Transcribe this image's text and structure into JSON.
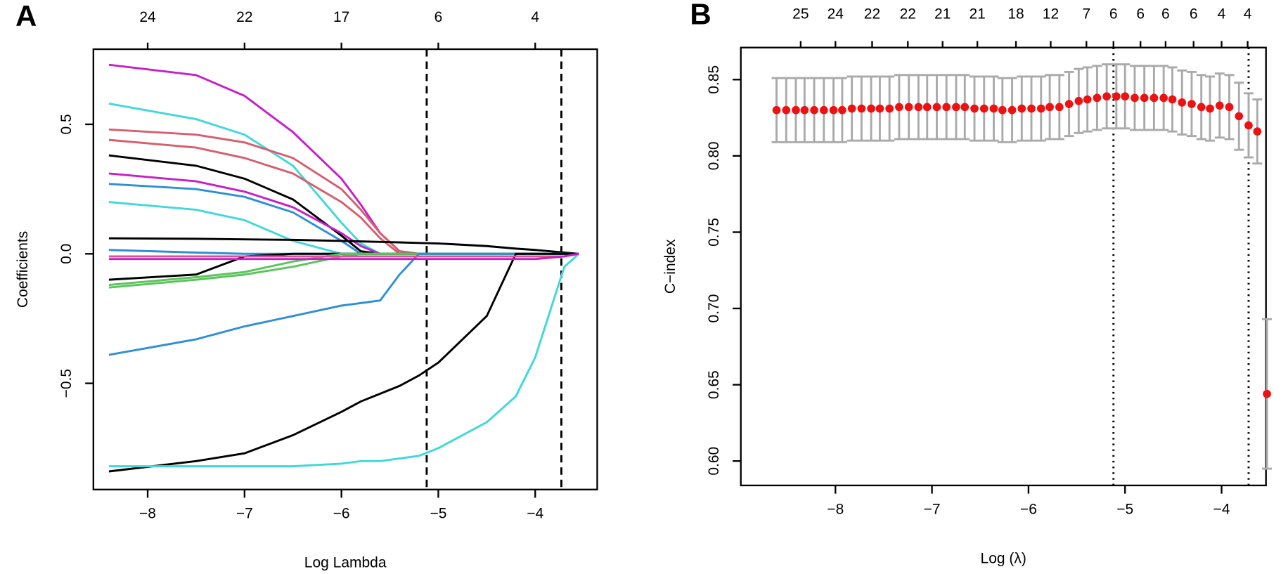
{
  "chart_data": [
    {
      "type": "line",
      "panel_label": "A",
      "x_label": "Log Lambda",
      "y_label": "Coefficients",
      "xlim": [
        -8.56,
        -3.36
      ],
      "ylim": [
        -0.91,
        0.79
      ],
      "xticks": [
        {
          "value": -8,
          "label": "−8"
        },
        {
          "value": -7,
          "label": "−7"
        },
        {
          "value": -6,
          "label": "−6"
        },
        {
          "value": -5,
          "label": "−5"
        },
        {
          "value": -4,
          "label": "−4"
        }
      ],
      "yticks": [
        {
          "value": -0.5,
          "label": "−0.5"
        },
        {
          "value": 0,
          "label": "0.0"
        },
        {
          "value": 0.5,
          "label": "0.5"
        }
      ],
      "top_ticks": [
        {
          "value": -8,
          "label": "24"
        },
        {
          "value": -7,
          "label": "22"
        },
        {
          "value": -6,
          "label": "17"
        },
        {
          "value": -5,
          "label": "6"
        },
        {
          "value": -4,
          "label": "4"
        }
      ],
      "vlines": [
        -5.12,
        -3.73
      ],
      "vline_style": "dashed",
      "x": [
        -8.4,
        -7.5,
        -7,
        -6.5,
        -6,
        -5.8,
        -5.6,
        -5.4,
        -5.2,
        -5,
        -4.5,
        -4.2,
        -4,
        -3.7,
        -3.55
      ],
      "series": [
        {
          "color": "#c71fc7",
          "values": [
            0.73,
            0.69,
            0.61,
            0.47,
            0.29,
            0.19,
            0.08,
            0.01,
            0,
            0,
            0,
            0,
            0,
            0,
            0
          ]
        },
        {
          "color": "#40d8d8",
          "values": [
            0.58,
            0.52,
            0.46,
            0.34,
            0.12,
            0.04,
            0,
            0,
            0,
            0,
            0,
            0,
            0,
            0,
            0
          ]
        },
        {
          "color": "#d55f6f",
          "values": [
            0.48,
            0.46,
            0.43,
            0.37,
            0.25,
            0.17,
            0.08,
            0.01,
            0,
            0,
            0,
            0,
            0,
            0,
            0
          ]
        },
        {
          "color": "#d55f6f",
          "values": [
            0.44,
            0.41,
            0.37,
            0.31,
            0.2,
            0.14,
            0.06,
            0,
            0,
            0,
            0,
            0,
            0,
            0,
            0
          ]
        },
        {
          "color": "#000000",
          "values": [
            0.38,
            0.34,
            0.29,
            0.21,
            0.07,
            0.01,
            0,
            0,
            0,
            0,
            0,
            0,
            0,
            0,
            0
          ]
        },
        {
          "color": "#c71fc7",
          "values": [
            0.31,
            0.28,
            0.24,
            0.18,
            0.08,
            0.03,
            0,
            0,
            0,
            0,
            0,
            0,
            0,
            0,
            0
          ]
        },
        {
          "color": "#2e8fd6",
          "values": [
            0.27,
            0.25,
            0.22,
            0.16,
            0.05,
            0,
            0,
            0,
            0,
            0,
            0,
            0,
            0,
            0,
            0
          ]
        },
        {
          "color": "#40d8d8",
          "values": [
            0.2,
            0.17,
            0.13,
            0.05,
            0,
            0,
            0,
            0,
            0,
            0,
            0,
            0,
            0,
            0,
            0
          ]
        },
        {
          "color": "#000000",
          "values": [
            0.06,
            0.058,
            0.056,
            0.054,
            0.05,
            0.048,
            0.046,
            0.044,
            0.042,
            0.04,
            0.03,
            0.02,
            0.015,
            0.005,
            0
          ]
        },
        {
          "color": "#2e8fd6",
          "values": [
            0.015,
            0.005,
            0,
            0,
            0,
            0,
            0,
            0,
            0,
            0,
            0,
            0,
            0,
            0,
            0
          ]
        },
        {
          "color": "#000000",
          "values": [
            -0.1,
            -0.08,
            -0.01,
            0,
            0,
            0,
            0,
            0,
            0,
            0,
            0,
            0,
            0,
            0,
            0
          ]
        },
        {
          "color": "#5cc45c",
          "values": [
            -0.12,
            -0.09,
            -0.07,
            -0.03,
            0,
            0,
            0,
            0,
            0,
            0,
            0,
            0,
            0,
            0,
            0
          ]
        },
        {
          "color": "#5cc45c",
          "values": [
            -0.13,
            -0.1,
            -0.08,
            -0.05,
            -0.01,
            0,
            0,
            0,
            0,
            0,
            0,
            0,
            0,
            0,
            0
          ]
        },
        {
          "color": "#2e8fd6",
          "values": [
            -0.39,
            -0.33,
            -0.28,
            -0.24,
            -0.2,
            -0.19,
            -0.18,
            -0.08,
            0,
            0,
            0,
            0,
            0,
            0,
            0
          ]
        },
        {
          "color": "#000000",
          "values": [
            -0.84,
            -0.8,
            -0.77,
            -0.7,
            -0.61,
            -0.57,
            -0.54,
            -0.51,
            -0.47,
            -0.42,
            -0.24,
            0,
            0,
            0,
            0
          ]
        },
        {
          "color": "#40d8d8",
          "values": [
            -0.82,
            -0.82,
            -0.82,
            -0.82,
            -0.81,
            -0.8,
            -0.8,
            -0.79,
            -0.78,
            -0.75,
            -0.65,
            -0.55,
            -0.4,
            -0.05,
            0
          ]
        },
        {
          "color": "#e0508f",
          "values": [
            -0.01,
            -0.01,
            -0.01,
            -0.01,
            -0.01,
            -0.01,
            -0.01,
            -0.01,
            -0.01,
            -0.01,
            -0.01,
            -0.01,
            -0.01,
            -0.01,
            0
          ]
        },
        {
          "color": "#c71fc7",
          "values": [
            -0.02,
            -0.02,
            -0.02,
            -0.02,
            -0.02,
            -0.02,
            -0.02,
            -0.02,
            -0.02,
            -0.02,
            -0.02,
            -0.02,
            -0.02,
            -0.01,
            0
          ]
        }
      ]
    },
    {
      "type": "errorbar",
      "panel_label": "B",
      "x_label": "Log (λ)",
      "y_label": "C−index",
      "xlim": [
        -8.98,
        -3.54
      ],
      "ylim": [
        0.584,
        0.871
      ],
      "xticks": [
        {
          "value": -8,
          "label": "−8"
        },
        {
          "value": -7,
          "label": "−7"
        },
        {
          "value": -6,
          "label": "−6"
        },
        {
          "value": -5,
          "label": "−5"
        },
        {
          "value": -4,
          "label": "−4"
        }
      ],
      "yticks": [
        {
          "value": 0.6,
          "label": "0.60"
        },
        {
          "value": 0.65,
          "label": "0.65"
        },
        {
          "value": 0.7,
          "label": "0.70"
        },
        {
          "value": 0.75,
          "label": "0.75"
        },
        {
          "value": 0.8,
          "label": "0.80"
        },
        {
          "value": 0.85,
          "label": "0.85"
        }
      ],
      "top_ticks": [
        {
          "value": -8.36,
          "label": "25"
        },
        {
          "value": -8,
          "label": "24"
        },
        {
          "value": -7.62,
          "label": "22"
        },
        {
          "value": -7.25,
          "label": "22"
        },
        {
          "value": -6.89,
          "label": "21"
        },
        {
          "value": -6.53,
          "label": "21"
        },
        {
          "value": -6.13,
          "label": "18"
        },
        {
          "value": -5.77,
          "label": "12"
        },
        {
          "value": -5.4,
          "label": "7"
        },
        {
          "value": -5.12,
          "label": "6"
        },
        {
          "value": -4.84,
          "label": "6"
        },
        {
          "value": -4.58,
          "label": "6"
        },
        {
          "value": -4.29,
          "label": "6"
        },
        {
          "value": -4,
          "label": "4"
        },
        {
          "value": -3.73,
          "label": "4"
        }
      ],
      "vlines": [
        -5.12,
        -3.72
      ],
      "vline_style": "dotted",
      "color": "#ee1111",
      "error_color": "#aaaaaa",
      "x": [
        -8.61,
        -8.51,
        -8.41,
        -8.32,
        -8.22,
        -8.12,
        -8.02,
        -7.93,
        -7.83,
        -7.73,
        -7.63,
        -7.54,
        -7.44,
        -7.34,
        -7.24,
        -7.14,
        -7.05,
        -6.95,
        -6.85,
        -6.75,
        -6.66,
        -6.56,
        -6.46,
        -6.36,
        -6.27,
        -6.17,
        -6.07,
        -5.97,
        -5.87,
        -5.78,
        -5.68,
        -5.58,
        -5.48,
        -5.39,
        -5.29,
        -5.19,
        -5.09,
        -5.0,
        -4.9,
        -4.8,
        -4.7,
        -4.6,
        -4.51,
        -4.41,
        -4.31,
        -4.21,
        -4.12,
        -4.02,
        -3.92,
        -3.82,
        -3.72,
        -3.63,
        -3.53
      ],
      "values": [
        0.83,
        0.83,
        0.83,
        0.83,
        0.83,
        0.83,
        0.83,
        0.83,
        0.831,
        0.831,
        0.831,
        0.831,
        0.831,
        0.832,
        0.832,
        0.832,
        0.832,
        0.832,
        0.832,
        0.832,
        0.832,
        0.831,
        0.831,
        0.831,
        0.83,
        0.83,
        0.831,
        0.831,
        0.831,
        0.832,
        0.832,
        0.834,
        0.836,
        0.837,
        0.838,
        0.839,
        0.839,
        0.839,
        0.838,
        0.838,
        0.838,
        0.838,
        0.837,
        0.835,
        0.834,
        0.832,
        0.831,
        0.833,
        0.832,
        0.826,
        0.82,
        0.816,
        0.644
      ],
      "errors": [
        0.021,
        0.021,
        0.021,
        0.021,
        0.021,
        0.021,
        0.021,
        0.021,
        0.021,
        0.021,
        0.021,
        0.021,
        0.021,
        0.021,
        0.021,
        0.021,
        0.021,
        0.021,
        0.021,
        0.021,
        0.021,
        0.021,
        0.021,
        0.021,
        0.021,
        0.021,
        0.021,
        0.021,
        0.021,
        0.021,
        0.021,
        0.021,
        0.021,
        0.021,
        0.021,
        0.021,
        0.021,
        0.021,
        0.021,
        0.021,
        0.021,
        0.021,
        0.021,
        0.021,
        0.021,
        0.021,
        0.021,
        0.021,
        0.021,
        0.022,
        0.021,
        0.021,
        0.049
      ]
    }
  ]
}
